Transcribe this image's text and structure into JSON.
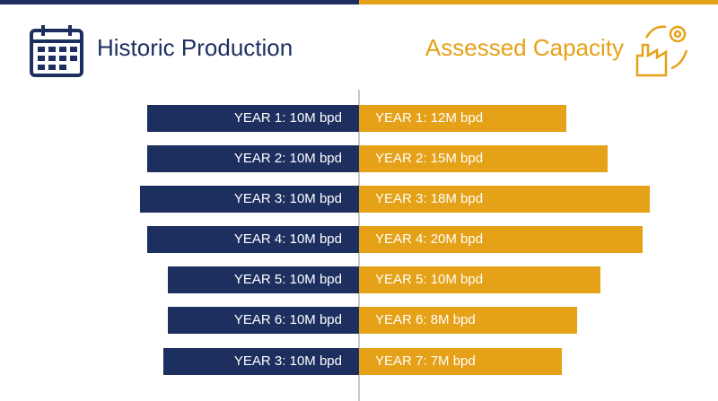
{
  "header": {
    "left_title": "Historic Production",
    "right_title": "Assessed Capacity"
  },
  "rows": [
    {
      "left": "YEAR 1: 10M bpd",
      "right": "YEAR 1: 12M bpd"
    },
    {
      "left": "YEAR 2: 10M bpd",
      "right": "YEAR 2: 15M bpd"
    },
    {
      "left": "YEAR 3: 10M bpd",
      "right": "YEAR 3: 18M bpd"
    },
    {
      "left": "YEAR 4: 10M bpd",
      "right": "YEAR 4: 20M bpd"
    },
    {
      "left": "YEAR 5: 10M bpd",
      "right": "YEAR 5: 10M bpd"
    },
    {
      "left": "YEAR 6: 10M bpd",
      "right": "YEAR 6: 8M bpd"
    },
    {
      "left": "YEAR 3: 10M bpd",
      "right": "YEAR 7: 7M bpd"
    }
  ]
}
